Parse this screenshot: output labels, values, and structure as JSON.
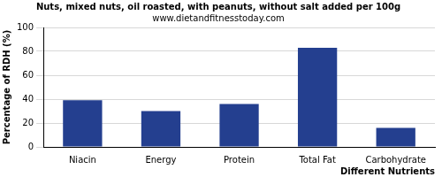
{
  "chart_data": {
    "type": "bar",
    "title": "Nuts, mixed nuts, oil roasted, with peanuts, without salt added per 100g",
    "subtitle": "www.dietandfitnesstoday.com",
    "x_label": "Different Nutrients",
    "y_label": "Percentage of RDH (%)",
    "categories": [
      "Niacin",
      "Energy",
      "Protein",
      "Total Fat",
      "Carbohydrate"
    ],
    "values": [
      39,
      30,
      36,
      83,
      16
    ],
    "color": "#243f8f",
    "ylim": [
      0,
      100
    ],
    "yticks": [
      0,
      20,
      40,
      60,
      80,
      100
    ],
    "grid": true
  }
}
